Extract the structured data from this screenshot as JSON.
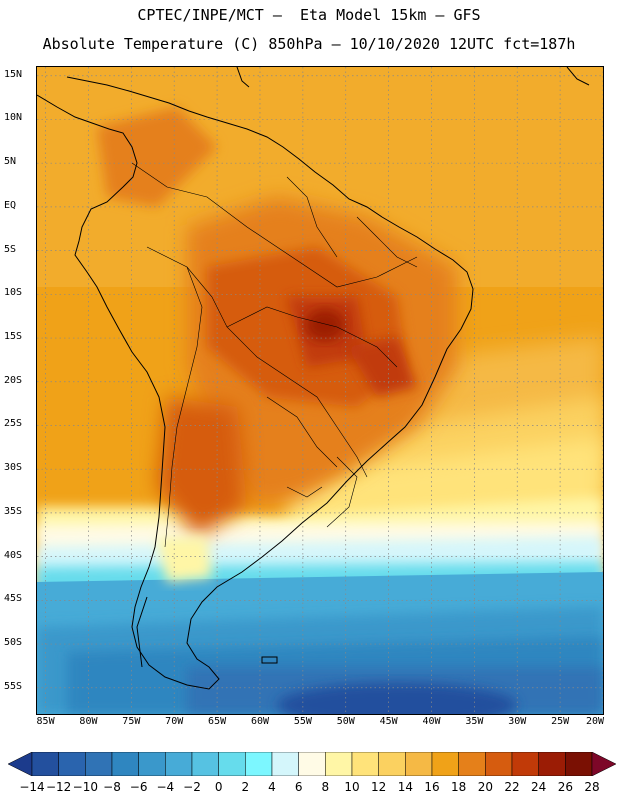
{
  "header": {
    "title_line1": "CPTEC/INPE/MCT –  Eta Model 15km – GFS",
    "title_line2": "Absolute Temperature (C) 850hPa – 10/10/2020 12UTC fct=187h"
  },
  "map": {
    "lat_labels": [
      "15N",
      "10N",
      "5N",
      "EQ",
      "5S",
      "10S",
      "15S",
      "20S",
      "25S",
      "30S",
      "35S",
      "40S",
      "45S",
      "50S",
      "55S"
    ],
    "lon_labels": [
      "85W",
      "80W",
      "75W",
      "70W",
      "65W",
      "60W",
      "55W",
      "50W",
      "45W",
      "40W",
      "35W",
      "30W",
      "25W",
      "20W"
    ],
    "lat_range": [
      -58,
      16
    ],
    "lon_range": [
      -86,
      -20
    ],
    "grid": "dotted"
  },
  "colorbar": {
    "labels": [
      "-14",
      "-12",
      "-10",
      "-8",
      "-6",
      "-4",
      "-2",
      "0",
      "2",
      "4",
      "6",
      "8",
      "10",
      "12",
      "14",
      "16",
      "18",
      "20",
      "22",
      "24",
      "26",
      "28"
    ],
    "colors": [
      "#1c3b8c",
      "#23509e",
      "#2a64ae",
      "#3073b5",
      "#2f86c0",
      "#3a98cb",
      "#47abd7",
      "#56c2e2",
      "#66dcec",
      "#7cf7ff",
      "#d4f6fb",
      "#fffbe6",
      "#fff6a6",
      "#ffe37a",
      "#fbd160",
      "#f5b945",
      "#f0a218",
      "#e5801a",
      "#d65c0f",
      "#c13a08",
      "#9b1c05",
      "#7a1003",
      "#7d0728"
    ]
  }
}
